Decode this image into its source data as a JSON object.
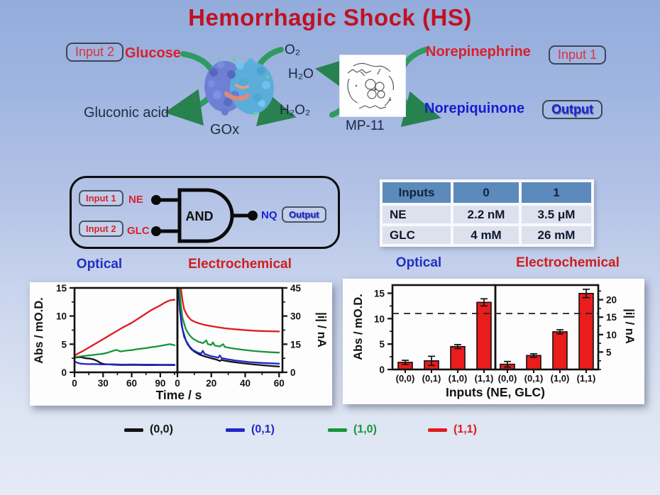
{
  "slide": {
    "title": "Hemorrhagic Shock (HS)"
  },
  "scheme": {
    "input2_badge": "Input 2",
    "glucose_label": "Glucose",
    "gluconic_acid_label": "Gluconic acid",
    "enzyme_label": "GOx",
    "o2_label": "O₂",
    "h2o_label": "H₂O",
    "h2o2_label": "H₂O₂",
    "catalyst_label": "MP-11",
    "norepinephrine_label": "Norepinephrine",
    "input1_badge": "Input 1",
    "norepiquinone_label": "Norepiquinone",
    "output_badge": "Output"
  },
  "logic_gate": {
    "input1_badge": "Input 1",
    "input1_signal": "NE",
    "input2_badge": "Input 2",
    "input2_signal": "GLC",
    "gate_type": "AND",
    "output_signal": "NQ",
    "output_badge": "Output"
  },
  "truth_table": {
    "headers": [
      "Inputs",
      "0",
      "1"
    ],
    "rows": [
      {
        "name": "NE",
        "zero": "2.2 nM",
        "one": "3.5 μM"
      },
      {
        "name": "GLC",
        "zero": "4 mM",
        "one": "26 mM"
      }
    ]
  },
  "panel_titles": {
    "kinetics_optical": "Optical",
    "kinetics_electrochemical": "Electrochemical",
    "bars_optical": "Optical",
    "bars_electrochemical": "Electrochemical"
  },
  "legend": {
    "items": [
      {
        "label": "(0,0)",
        "color": "#141414"
      },
      {
        "label": "(0,1)",
        "color": "#2028c8"
      },
      {
        "label": "(1,0)",
        "color": "#17953c"
      },
      {
        "label": "(1,1)",
        "color": "#e01b1b"
      }
    ]
  },
  "chart_data": [
    {
      "type": "line",
      "title": "Kinetic responses: optical (left) and electrochemical (right)",
      "xlabel": "Time / s",
      "ylabel_left": "Abs / mO.D.",
      "ylabel_right": "|i| / nA",
      "left_panel": {
        "xlim": [
          0,
          108
        ],
        "xticks": [
          0,
          30,
          60,
          90
        ],
        "ylim": [
          0,
          15
        ],
        "yticks": [
          0,
          5,
          10,
          15
        ],
        "series": [
          {
            "name": "(0,0)",
            "color": "#141414",
            "points": [
              [
                0,
                2.6
              ],
              [
                4,
                2.7
              ],
              [
                8,
                2.65
              ],
              [
                12,
                2.5
              ],
              [
                16,
                2.45
              ],
              [
                20,
                2.3
              ],
              [
                24,
                2.0
              ],
              [
                28,
                1.6
              ],
              [
                32,
                1.45
              ],
              [
                36,
                1.4
              ],
              [
                42,
                1.35
              ],
              [
                50,
                1.3
              ],
              [
                60,
                1.32
              ],
              [
                75,
                1.28
              ],
              [
                90,
                1.3
              ],
              [
                105,
                1.27
              ]
            ]
          },
          {
            "name": "(0,1)",
            "color": "#2028c8",
            "points": [
              [
                0,
                1.95
              ],
              [
                3,
                1.7
              ],
              [
                6,
                1.55
              ],
              [
                10,
                1.5
              ],
              [
                15,
                1.45
              ],
              [
                20,
                1.48
              ],
              [
                30,
                1.4
              ],
              [
                40,
                1.42
              ],
              [
                50,
                1.38
              ],
              [
                60,
                1.4
              ],
              [
                70,
                1.36
              ],
              [
                80,
                1.38
              ],
              [
                90,
                1.35
              ],
              [
                105,
                1.35
              ]
            ]
          },
          {
            "name": "(1,0)",
            "color": "#17953c",
            "points": [
              [
                0,
                2.7
              ],
              [
                5,
                2.8
              ],
              [
                10,
                2.9
              ],
              [
                15,
                3.0
              ],
              [
                20,
                3.1
              ],
              [
                25,
                3.2
              ],
              [
                30,
                3.3
              ],
              [
                35,
                3.5
              ],
              [
                40,
                3.8
              ],
              [
                44,
                4.0
              ],
              [
                48,
                3.7
              ],
              [
                52,
                3.8
              ],
              [
                56,
                3.9
              ],
              [
                60,
                3.95
              ],
              [
                65,
                4.1
              ],
              [
                70,
                4.2
              ],
              [
                75,
                4.3
              ],
              [
                80,
                4.45
              ],
              [
                85,
                4.55
              ],
              [
                90,
                4.7
              ],
              [
                95,
                4.85
              ],
              [
                100,
                5.0
              ],
              [
                105,
                4.8
              ]
            ]
          },
          {
            "name": "(1,1)",
            "color": "#e01b1b",
            "points": [
              [
                0,
                3.0
              ],
              [
                10,
                3.9
              ],
              [
                20,
                4.9
              ],
              [
                30,
                5.9
              ],
              [
                40,
                6.9
              ],
              [
                50,
                7.9
              ],
              [
                60,
                8.8
              ],
              [
                70,
                9.9
              ],
              [
                80,
                11.0
              ],
              [
                90,
                11.9
              ],
              [
                95,
                12.4
              ],
              [
                100,
                12.8
              ],
              [
                105,
                12.9
              ]
            ]
          }
        ]
      },
      "right_panel": {
        "xlim": [
          0,
          62
        ],
        "xticks": [
          0,
          20,
          40,
          60
        ],
        "ylim": [
          0,
          45
        ],
        "yticks": [
          0,
          15,
          30,
          45
        ],
        "series": [
          {
            "name": "(0,0)",
            "color": "#141414",
            "points": [
              [
                0.8,
                44
              ],
              [
                1.5,
                33
              ],
              [
                2.5,
                25
              ],
              [
                4,
                19
              ],
              [
                6,
                15
              ],
              [
                8,
                12.5
              ],
              [
                10,
                11
              ],
              [
                13,
                9.5
              ],
              [
                16,
                8.5
              ],
              [
                20,
                7.5
              ],
              [
                23,
                6.8
              ],
              [
                25,
                6.0
              ],
              [
                26,
                6.6
              ],
              [
                28,
                6.2
              ],
              [
                32,
                5.6
              ],
              [
                36,
                5.1
              ],
              [
                40,
                4.7
              ],
              [
                45,
                4.2
              ],
              [
                50,
                3.8
              ],
              [
                55,
                3.4
              ],
              [
                60,
                3.1
              ]
            ]
          },
          {
            "name": "(0,1)",
            "color": "#2028c8",
            "points": [
              [
                1,
                44
              ],
              [
                2,
                30
              ],
              [
                3,
                23
              ],
              [
                5,
                17
              ],
              [
                7,
                14
              ],
              [
                9,
                12
              ],
              [
                12,
                10.5
              ],
              [
                14,
                10
              ],
              [
                15,
                11.5
              ],
              [
                16,
                9.8
              ],
              [
                18,
                9.2
              ],
              [
                20,
                8.6
              ],
              [
                22,
                8.2
              ],
              [
                24,
                7.8
              ],
              [
                25,
                9.0
              ],
              [
                26,
                7.6
              ],
              [
                30,
                6.9
              ],
              [
                34,
                6.3
              ],
              [
                38,
                5.9
              ],
              [
                42,
                5.5
              ],
              [
                46,
                5.2
              ],
              [
                50,
                5.0
              ],
              [
                55,
                4.8
              ],
              [
                60,
                4.6
              ]
            ]
          },
          {
            "name": "(1,0)",
            "color": "#17953c",
            "points": [
              [
                1.2,
                45
              ],
              [
                2,
                36
              ],
              [
                3,
                29
              ],
              [
                5,
                23
              ],
              [
                7,
                20
              ],
              [
                9,
                18
              ],
              [
                12,
                16.5
              ],
              [
                15,
                15.5
              ],
              [
                17,
                17
              ],
              [
                18,
                15
              ],
              [
                20,
                14.6
              ],
              [
                21,
                16
              ],
              [
                22,
                14.3
              ],
              [
                25,
                13.8
              ],
              [
                27,
                15
              ],
              [
                28,
                13.5
              ],
              [
                31,
                13
              ],
              [
                34,
                12.6
              ],
              [
                38,
                12.1
              ],
              [
                42,
                11.7
              ],
              [
                46,
                11.3
              ],
              [
                50,
                11.0
              ],
              [
                55,
                10.7
              ],
              [
                60,
                10.5
              ]
            ]
          },
          {
            "name": "(1,1)",
            "color": "#e01b1b",
            "points": [
              [
                2,
                45
              ],
              [
                3,
                38
              ],
              [
                4,
                33.5
              ],
              [
                6,
                30
              ],
              [
                8,
                28
              ],
              [
                10,
                27
              ],
              [
                13,
                26
              ],
              [
                16,
                25.3
              ],
              [
                20,
                24.6
              ],
              [
                24,
                24
              ],
              [
                28,
                23.5
              ],
              [
                32,
                23.1
              ],
              [
                36,
                22.8
              ],
              [
                40,
                22.5
              ],
              [
                45,
                22.2
              ],
              [
                50,
                22.0
              ],
              [
                55,
                21.9
              ],
              [
                60,
                21.8
              ]
            ]
          }
        ]
      }
    },
    {
      "type": "bar",
      "title": "Responses vs input combinations: optical (left) and electrochemical (right)",
      "xlabel": "Inputs (NE, GLC)",
      "categories": [
        "(0,0)",
        "(0,1)",
        "(1,0)",
        "(1,1)"
      ],
      "bar_color": "#ea1c1c",
      "threshold_abs": 11,
      "left_panel": {
        "ylabel": "Abs / mO.D.",
        "ylim": [
          0,
          16.6
        ],
        "yticks": [
          0,
          5,
          10,
          15
        ],
        "values": [
          1.4,
          1.7,
          4.5,
          13.2
        ],
        "errors": [
          0.4,
          0.9,
          0.4,
          0.7
        ]
      },
      "right_panel": {
        "ylabel": "|i| / nA",
        "ylim": [
          0,
          24.2
        ],
        "yticks": [
          5,
          10,
          15,
          20
        ],
        "values": [
          1.5,
          4.0,
          10.8,
          21.8
        ],
        "errors": [
          0.8,
          0.5,
          0.6,
          1.2
        ]
      }
    }
  ]
}
